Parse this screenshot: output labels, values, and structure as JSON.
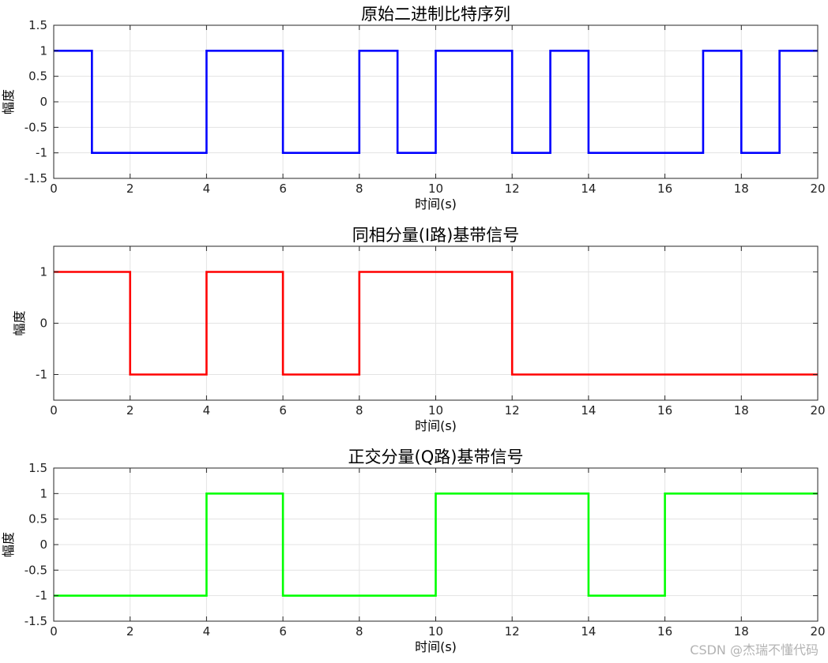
{
  "chart_data": [
    {
      "type": "line",
      "step": true,
      "title": "原始二进制比特序列",
      "xlabel": "时间(s)",
      "ylabel": "幅度",
      "xlim": [
        0,
        20
      ],
      "ylim": [
        -1.5,
        1.5
      ],
      "xticks": [
        0,
        2,
        4,
        6,
        8,
        10,
        12,
        14,
        16,
        18,
        20
      ],
      "xtick_labels": [
        "0",
        "2",
        "4",
        "6",
        "8",
        "10",
        "12",
        "14",
        "16",
        "18",
        "20"
      ],
      "yticks": [
        -1.5,
        -1,
        -0.5,
        0,
        0.5,
        1,
        1.5
      ],
      "ytick_labels": [
        "-1.5",
        "-1",
        "-0.5",
        "0",
        "0.5",
        "1",
        "1.5"
      ],
      "grid": true,
      "color": "#0000ff",
      "series": [
        {
          "x": [
            0,
            1,
            1,
            4,
            4,
            6,
            6,
            8,
            8,
            9,
            9,
            10,
            10,
            12,
            12,
            13,
            13,
            14,
            14,
            17,
            17,
            18,
            18,
            19,
            19,
            20
          ],
          "y": [
            1,
            1,
            -1,
            -1,
            1,
            1,
            -1,
            -1,
            1,
            1,
            -1,
            -1,
            1,
            1,
            -1,
            -1,
            1,
            1,
            -1,
            -1,
            1,
            1,
            -1,
            -1,
            1,
            1
          ]
        }
      ]
    },
    {
      "type": "line",
      "step": true,
      "title": "同相分量(I路)基带信号",
      "xlabel": "时间(s)",
      "ylabel": "幅度",
      "xlim": [
        0,
        20
      ],
      "ylim": [
        -1.5,
        1.5
      ],
      "xticks": [
        0,
        2,
        4,
        6,
        8,
        10,
        12,
        14,
        16,
        18,
        20
      ],
      "xtick_labels": [
        "0",
        "2",
        "4",
        "6",
        "8",
        "10",
        "12",
        "14",
        "16",
        "18",
        "20"
      ],
      "yticks": [
        -1,
        0,
        1
      ],
      "ytick_labels": [
        "-1",
        "0",
        "1"
      ],
      "grid": true,
      "color": "#ff0000",
      "series": [
        {
          "x": [
            0,
            2,
            2,
            4,
            4,
            6,
            6,
            8,
            8,
            12,
            12,
            20
          ],
          "y": [
            1,
            1,
            -1,
            -1,
            1,
            1,
            -1,
            -1,
            1,
            1,
            -1,
            -1
          ]
        }
      ]
    },
    {
      "type": "line",
      "step": true,
      "title": "正交分量(Q路)基带信号",
      "xlabel": "时间(s)",
      "ylabel": "幅度",
      "xlim": [
        0,
        20
      ],
      "ylim": [
        -1.5,
        1.5
      ],
      "xticks": [
        0,
        2,
        4,
        6,
        8,
        10,
        12,
        14,
        16,
        18,
        20
      ],
      "xtick_labels": [
        "0",
        "2",
        "4",
        "6",
        "8",
        "10",
        "12",
        "14",
        "16",
        "18",
        "20"
      ],
      "yticks": [
        -1.5,
        -1,
        -0.5,
        0,
        0.5,
        1,
        1.5
      ],
      "ytick_labels": [
        "-1.5",
        "-1",
        "-0.5",
        "0",
        "0.5",
        "1",
        "1.5"
      ],
      "grid": true,
      "color": "#00ff00",
      "series": [
        {
          "x": [
            0,
            4,
            4,
            6,
            6,
            10,
            10,
            14,
            14,
            16,
            16,
            20
          ],
          "y": [
            -1,
            -1,
            1,
            1,
            -1,
            -1,
            1,
            1,
            -1,
            -1,
            1,
            1
          ]
        }
      ]
    }
  ],
  "watermark": "CSDN @杰瑞不懂代码"
}
